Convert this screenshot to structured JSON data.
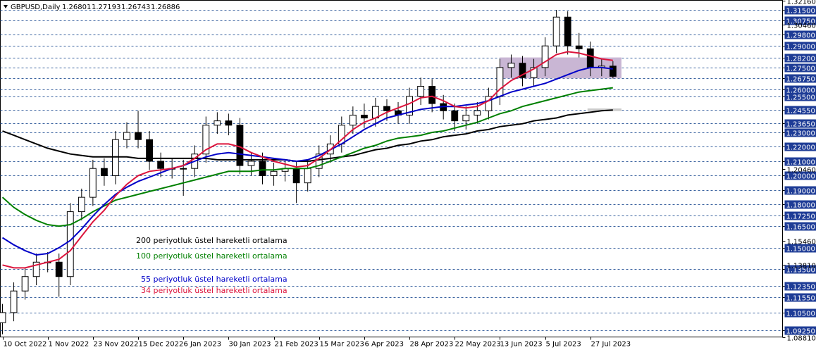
{
  "chart_data": {
    "type": "candlestick",
    "header": {
      "symbol": "GBPUSD,Daily",
      "ohlc": [
        1.26801,
        1.27193,
        1.26743,
        1.26886
      ]
    },
    "x": [
      0,
      4,
      8,
      12,
      16,
      20,
      24,
      28,
      32,
      36,
      40,
      44,
      48,
      52,
      56,
      60,
      64,
      68,
      72,
      76,
      80,
      84,
      88,
      92,
      96,
      100,
      104,
      108,
      112,
      116,
      120,
      124,
      128,
      132,
      136,
      140,
      144,
      148,
      152,
      156,
      160,
      164,
      168,
      172,
      176,
      180,
      184,
      188,
      192,
      196,
      200,
      204,
      208,
      212,
      216
    ],
    "open": [
      1.098,
      1.105,
      1.12,
      1.13,
      1.14,
      1.14,
      1.13,
      1.175,
      1.185,
      1.205,
      1.2,
      1.225,
      1.23,
      1.225,
      1.21,
      1.205,
      1.205,
      1.205,
      1.215,
      1.235,
      1.238,
      1.235,
      1.207,
      1.21,
      1.2,
      1.203,
      1.205,
      1.195,
      1.205,
      1.215,
      1.222,
      1.235,
      1.242,
      1.24,
      1.248,
      1.245,
      1.242,
      1.255,
      1.262,
      1.25,
      1.245,
      1.238,
      1.242,
      1.245,
      1.255,
      1.275,
      1.278,
      1.268,
      1.275,
      1.29,
      1.31,
      1.29,
      1.288,
      1.275,
      1.276
    ],
    "high": [
      1.111,
      1.126,
      1.136,
      1.146,
      1.147,
      1.146,
      1.181,
      1.191,
      1.211,
      1.212,
      1.231,
      1.237,
      1.245,
      1.231,
      1.216,
      1.212,
      1.211,
      1.221,
      1.241,
      1.244,
      1.243,
      1.24,
      1.216,
      1.216,
      1.209,
      1.211,
      1.21,
      1.211,
      1.221,
      1.228,
      1.241,
      1.248,
      1.25,
      1.254,
      1.253,
      1.251,
      1.261,
      1.268,
      1.267,
      1.256,
      1.25,
      1.248,
      1.251,
      1.261,
      1.281,
      1.284,
      1.283,
      1.281,
      1.296,
      1.315,
      1.314,
      1.299,
      1.293,
      1.281,
      1.2794
    ],
    "low": [
      1.09,
      1.099,
      1.114,
      1.124,
      1.133,
      1.116,
      1.124,
      1.169,
      1.179,
      1.193,
      1.194,
      1.219,
      1.219,
      1.204,
      1.199,
      1.198,
      1.186,
      1.199,
      1.209,
      1.229,
      1.228,
      1.201,
      1.2,
      1.194,
      1.193,
      1.196,
      1.181,
      1.189,
      1.199,
      1.209,
      1.216,
      1.229,
      1.233,
      1.234,
      1.238,
      1.236,
      1.236,
      1.249,
      1.244,
      1.239,
      1.231,
      1.232,
      1.236,
      1.239,
      1.249,
      1.268,
      1.262,
      1.262,
      1.269,
      1.285,
      1.284,
      1.282,
      1.269,
      1.269,
      1.2674
    ],
    "close": [
      1.105,
      1.12,
      1.13,
      1.14,
      1.14,
      1.13,
      1.175,
      1.185,
      1.205,
      1.2,
      1.225,
      1.23,
      1.225,
      1.21,
      1.205,
      1.205,
      1.205,
      1.215,
      1.235,
      1.238,
      1.235,
      1.207,
      1.21,
      1.2,
      1.203,
      1.205,
      1.195,
      1.205,
      1.215,
      1.222,
      1.235,
      1.242,
      1.24,
      1.248,
      1.245,
      1.242,
      1.255,
      1.262,
      1.25,
      1.245,
      1.238,
      1.242,
      1.245,
      1.255,
      1.275,
      1.278,
      1.268,
      1.275,
      1.29,
      1.31,
      1.29,
      1.288,
      1.275,
      1.276,
      1.2689
    ],
    "series": [
      {
        "name": "200 periyotluk üstel hareketli ortalama",
        "color": "#000000",
        "values": [
          1.231,
          1.228,
          1.225,
          1.222,
          1.219,
          1.217,
          1.215,
          1.214,
          1.213,
          1.213,
          1.213,
          1.213,
          1.212,
          1.212,
          1.212,
          1.212,
          1.212,
          1.212,
          1.212,
          1.211,
          1.211,
          1.211,
          1.211,
          1.211,
          1.211,
          1.211,
          1.21,
          1.21,
          1.211,
          1.212,
          1.213,
          1.214,
          1.216,
          1.218,
          1.219,
          1.221,
          1.222,
          1.224,
          1.225,
          1.227,
          1.228,
          1.229,
          1.231,
          1.232,
          1.234,
          1.235,
          1.236,
          1.238,
          1.239,
          1.24,
          1.242,
          1.243,
          1.244,
          1.245,
          1.2455
        ]
      },
      {
        "name": "100 periyotluk üstel hareketli ortalama",
        "color": "#008000",
        "values": [
          1.185,
          1.178,
          1.173,
          1.169,
          1.166,
          1.165,
          1.166,
          1.17,
          1.175,
          1.179,
          1.183,
          1.185,
          1.187,
          1.189,
          1.191,
          1.193,
          1.195,
          1.197,
          1.199,
          1.201,
          1.203,
          1.203,
          1.203,
          1.204,
          1.204,
          1.205,
          1.205,
          1.205,
          1.207,
          1.21,
          1.213,
          1.216,
          1.219,
          1.221,
          1.224,
          1.226,
          1.227,
          1.228,
          1.23,
          1.231,
          1.233,
          1.235,
          1.237,
          1.24,
          1.243,
          1.245,
          1.248,
          1.25,
          1.252,
          1.254,
          1.256,
          1.258,
          1.259,
          1.26,
          1.261
        ]
      },
      {
        "name": "55 periyotluk üstel hareketli ortalama",
        "color": "#0000c8",
        "values": [
          1.157,
          1.152,
          1.148,
          1.145,
          1.146,
          1.15,
          1.155,
          1.163,
          1.172,
          1.18,
          1.187,
          1.192,
          1.196,
          1.199,
          1.202,
          1.205,
          1.207,
          1.21,
          1.213,
          1.215,
          1.216,
          1.215,
          1.214,
          1.213,
          1.212,
          1.211,
          1.21,
          1.211,
          1.214,
          1.218,
          1.222,
          1.227,
          1.232,
          1.236,
          1.24,
          1.242,
          1.244,
          1.246,
          1.247,
          1.248,
          1.248,
          1.249,
          1.25,
          1.252,
          1.255,
          1.258,
          1.26,
          1.262,
          1.264,
          1.267,
          1.27,
          1.273,
          1.275,
          1.275,
          1.274
        ]
      },
      {
        "name": "34 periyotluk üstel hareketli ortalama",
        "color": "#dc143c",
        "values": [
          1.138,
          1.136,
          1.136,
          1.138,
          1.14,
          1.142,
          1.148,
          1.158,
          1.168,
          1.176,
          1.186,
          1.194,
          1.2,
          1.203,
          1.204,
          1.205,
          1.207,
          1.212,
          1.218,
          1.222,
          1.222,
          1.22,
          1.216,
          1.213,
          1.21,
          1.208,
          1.206,
          1.207,
          1.212,
          1.218,
          1.225,
          1.232,
          1.237,
          1.24,
          1.244,
          1.247,
          1.25,
          1.254,
          1.255,
          1.252,
          1.248,
          1.247,
          1.248,
          1.252,
          1.26,
          1.266,
          1.27,
          1.274,
          1.279,
          1.284,
          1.286,
          1.285,
          1.283,
          1.281,
          1.28
        ]
      }
    ],
    "zones": [
      {
        "x": [
          176,
          219
        ],
        "y": [
          1.2675,
          1.282
        ],
        "color": "#c9b6d4"
      },
      {
        "x": [
          207,
          219
        ],
        "y": [
          1.2448,
          1.2466
        ],
        "color": "#cccccc"
      }
    ],
    "xlim": [
      -0.75,
      276
    ],
    "ylim": [
      1.0881,
      1.3216
    ],
    "xticks": [
      {
        "value": 0,
        "label": "10 Oct 2022"
      },
      {
        "value": 16,
        "label": "1 Nov 2022"
      },
      {
        "value": 32,
        "label": "23 Nov 2022"
      },
      {
        "value": 48,
        "label": "15 Dec 2022"
      },
      {
        "value": 64,
        "label": "6 Jan 2023"
      },
      {
        "value": 80,
        "label": "30 Jan 2023"
      },
      {
        "value": 96,
        "label": "21 Feb 2023"
      },
      {
        "value": 112,
        "label": "15 Mar 2023"
      },
      {
        "value": 128,
        "label": "6 Apr 2023"
      },
      {
        "value": 144,
        "label": "28 Apr 2023"
      },
      {
        "value": 160,
        "label": "22 May 2023"
      },
      {
        "value": 176,
        "label": "13 Jun 2023"
      },
      {
        "value": 192,
        "label": "5 Jul 2023"
      },
      {
        "value": 208,
        "label": "27 Jul 2023"
      }
    ],
    "yticks": [
      {
        "value": 1.3216,
        "label": "1.32160"
      },
      {
        "value": 1.3046,
        "label": "1.30460"
      },
      {
        "value": 1.2046,
        "label": "1.20460"
      },
      {
        "value": 1.1546,
        "label": "1.15460"
      },
      {
        "value": 1.1381,
        "label": "1.13810"
      },
      {
        "value": 1.0881,
        "label": "1.08810"
      }
    ],
    "levels": [
      {
        "value": 1.315,
        "label": "1.31500"
      },
      {
        "value": 1.3075,
        "label": "1.30750"
      },
      {
        "value": 1.298,
        "label": "1.29800"
      },
      {
        "value": 1.29,
        "label": "1.29000"
      },
      {
        "value": 1.282,
        "label": "1.28200"
      },
      {
        "value": 1.275,
        "label": "1.27500"
      },
      {
        "value": 1.2675,
        "label": "1.26750"
      },
      {
        "value": 1.26,
        "label": "1.26000"
      },
      {
        "value": 1.255,
        "label": "1.25500"
      },
      {
        "value": 1.2455,
        "label": "1.24550"
      },
      {
        "value": 1.2365,
        "label": "1.23650"
      },
      {
        "value": 1.23,
        "label": "1.23000"
      },
      {
        "value": 1.22,
        "label": "1.22000"
      },
      {
        "value": 1.21,
        "label": "1.21000"
      },
      {
        "value": 1.2,
        "label": "1.20000"
      },
      {
        "value": 1.19,
        "label": "1.19000"
      },
      {
        "value": 1.18,
        "label": "1.18000"
      },
      {
        "value": 1.1725,
        "label": "1.17250"
      },
      {
        "value": 1.165,
        "label": "1.16500"
      },
      {
        "value": 1.15,
        "label": "1.15000"
      },
      {
        "value": 1.135,
        "label": "1.13500"
      },
      {
        "value": 1.1235,
        "label": "1.12350"
      },
      {
        "value": 1.1155,
        "label": "1.11550"
      },
      {
        "value": 1.105,
        "label": "1.10500"
      },
      {
        "value": 1.0925,
        "label": "1.09250"
      }
    ],
    "level_color": "#1e3c96"
  }
}
